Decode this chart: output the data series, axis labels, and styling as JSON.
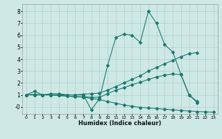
{
  "xlabel": "Humidex (Indice chaleur)",
  "background_color": "#cde8e5",
  "grid_color": "#afd0cc",
  "line_color": "#1a7a6e",
  "xlim": [
    -0.5,
    23.5
  ],
  "ylim": [
    -0.6,
    8.6
  ],
  "xticks": [
    0,
    1,
    2,
    3,
    4,
    5,
    6,
    7,
    8,
    9,
    10,
    11,
    12,
    13,
    14,
    15,
    16,
    17,
    18,
    19,
    20,
    21,
    22,
    23
  ],
  "yticks": [
    0,
    1,
    2,
    3,
    4,
    5,
    6,
    7,
    8
  ],
  "ytick_labels": [
    "-0",
    "1",
    "2",
    "3",
    "4",
    "5",
    "6",
    "7",
    "8"
  ],
  "series": [
    {
      "x": [
        0,
        1,
        2,
        3,
        4,
        5,
        6,
        7,
        8,
        9,
        10,
        11,
        12,
        13,
        14,
        15,
        16,
        17,
        18,
        19,
        20,
        21
      ],
      "y": [
        1.0,
        1.3,
        1.0,
        1.1,
        1.1,
        1.0,
        1.0,
        1.0,
        -0.25,
        0.7,
        3.5,
        5.8,
        6.1,
        6.0,
        5.4,
        8.0,
        7.0,
        5.2,
        4.6,
        2.7,
        1.0,
        0.35
      ]
    },
    {
      "x": [
        0,
        1,
        2,
        3,
        4,
        5,
        6,
        7,
        8,
        9,
        10,
        11,
        12,
        13,
        14,
        15,
        16,
        17,
        18,
        19,
        20,
        21
      ],
      "y": [
        1.0,
        1.05,
        1.0,
        1.0,
        1.0,
        1.0,
        1.0,
        1.05,
        1.1,
        1.15,
        1.4,
        1.7,
        2.0,
        2.3,
        2.6,
        3.0,
        3.3,
        3.6,
        3.9,
        4.2,
        4.45,
        4.55
      ]
    },
    {
      "x": [
        0,
        1,
        2,
        3,
        4,
        5,
        6,
        7,
        8,
        9,
        10,
        11,
        12,
        13,
        14,
        15,
        16,
        17,
        18,
        19,
        20,
        21,
        22,
        23
      ],
      "y": [
        1.0,
        1.0,
        1.0,
        1.0,
        0.95,
        0.9,
        0.85,
        0.8,
        0.7,
        0.6,
        0.45,
        0.3,
        0.15,
        0.05,
        -0.05,
        -0.1,
        -0.15,
        -0.2,
        -0.25,
        -0.3,
        -0.35,
        -0.4,
        -0.42,
        -0.45
      ]
    },
    {
      "x": [
        0,
        1,
        2,
        3,
        4,
        5,
        6,
        7,
        8,
        9,
        10,
        11,
        12,
        13,
        14,
        15,
        16,
        17,
        18,
        19,
        20,
        21
      ],
      "y": [
        1.0,
        1.0,
        1.0,
        1.0,
        0.95,
        0.9,
        0.85,
        0.85,
        0.8,
        0.8,
        1.1,
        1.4,
        1.6,
        1.85,
        2.05,
        2.3,
        2.5,
        2.65,
        2.75,
        2.7,
        1.0,
        0.45
      ]
    }
  ]
}
